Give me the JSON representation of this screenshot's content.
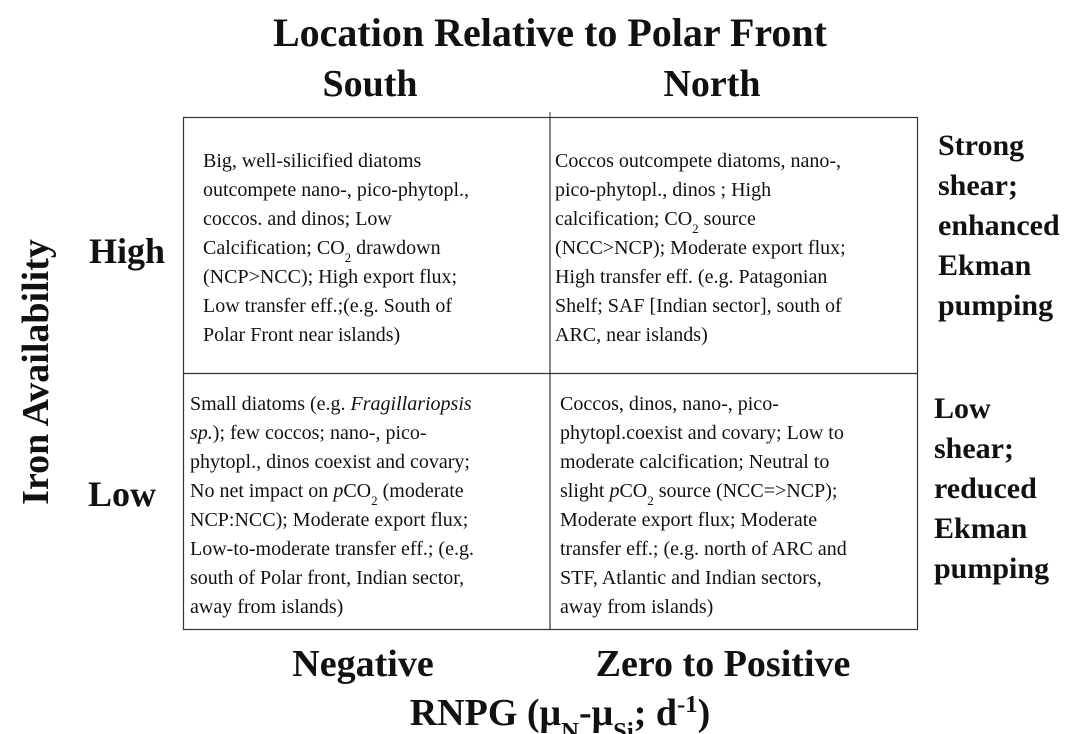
{
  "header": {
    "title": "Location Relative to Polar Front",
    "columns": [
      "South",
      "North"
    ]
  },
  "y_axis": {
    "label": "Iron Availability",
    "rows": [
      "High",
      "Low"
    ]
  },
  "x_axis": {
    "columns": [
      "Negative",
      "Zero to Positive"
    ],
    "label": [
      {
        "text": "RNPG (μ"
      },
      {
        "text": "N",
        "style": "sub"
      },
      {
        "text": "-μ"
      },
      {
        "text": "Si",
        "style": "sub"
      },
      {
        "text": "; d"
      },
      {
        "text": "-1",
        "style": "sup"
      },
      {
        "text": ")"
      }
    ]
  },
  "notes": [
    [
      "Strong",
      "shear;",
      "enhanced",
      "Ekman",
      "pumping"
    ],
    [
      "Low",
      "shear;",
      "reduced",
      "Ekman",
      "pumping"
    ]
  ],
  "cells": [
    [
      [
        {
          "text": "Big, well-silicified diatoms"
        }
      ],
      [
        {
          "text": "outcompete nano-, pico-phytopl.,"
        }
      ],
      [
        {
          "text": "coccos. and dinos; Low"
        }
      ],
      [
        {
          "text": "Calcification; CO"
        },
        {
          "text": "2",
          "style": "sub"
        },
        {
          "text": " drawdown"
        }
      ],
      [
        {
          "text": "(NCP>NCC); High export flux;"
        }
      ],
      [
        {
          "text": "Low transfer eff.;(e.g. South of"
        }
      ],
      [
        {
          "text": "Polar Front near islands)"
        }
      ]
    ],
    [
      [
        {
          "text": "Coccos outcompete diatoms, nano-,"
        }
      ],
      [
        {
          "text": "pico-phytopl.,  dinos ; High"
        }
      ],
      [
        {
          "text": "calcification; CO"
        },
        {
          "text": "2",
          "style": "sub"
        },
        {
          "text": " source"
        }
      ],
      [
        {
          "text": "(NCC>NCP); Moderate export flux;"
        }
      ],
      [
        {
          "text": "High transfer eff. (e.g. Patagonian"
        }
      ],
      [
        {
          "text": "Shelf; SAF [Indian sector], south of"
        }
      ],
      [
        {
          "text": "ARC, near islands)"
        }
      ]
    ],
    [
      [
        {
          "text": "Small diatoms (e.g. "
        },
        {
          "text": "Fragillariopsis",
          "style": "italic"
        }
      ],
      [
        {
          "text": "sp.",
          "style": "italic"
        },
        {
          "text": "); few coccos; nano-, pico-"
        }
      ],
      [
        {
          "text": "phytopl., dinos coexist and covary;"
        }
      ],
      [
        {
          "text": "No net impact on "
        },
        {
          "text": "p",
          "style": "italic"
        },
        {
          "text": "CO"
        },
        {
          "text": "2",
          "style": "sub"
        },
        {
          "text": " (moderate"
        }
      ],
      [
        {
          "text": "NCP:NCC); Moderate export flux;"
        }
      ],
      [
        {
          "text": "Low-to-moderate transfer eff.; (e.g."
        }
      ],
      [
        {
          "text": "south of Polar front, Indian sector,"
        }
      ],
      [
        {
          "text": "away from islands)"
        }
      ]
    ],
    [
      [
        {
          "text": "Coccos, dinos, nano-, pico-"
        }
      ],
      [
        {
          "text": "phytopl.coexist and covary; Low to"
        }
      ],
      [
        {
          "text": "moderate calcification; Neutral to"
        }
      ],
      [
        {
          "text": "slight "
        },
        {
          "text": "p",
          "style": "italic"
        },
        {
          "text": "CO"
        },
        {
          "text": "2",
          "style": "sub"
        },
        {
          "text": " source (NCC=>NCP);"
        }
      ],
      [
        {
          "text": "Moderate export flux; Moderate"
        }
      ],
      [
        {
          "text": "transfer eff.; (e.g. north of ARC and"
        }
      ],
      [
        {
          "text": "STF, Atlantic and Indian sectors,"
        }
      ],
      [
        {
          "text": "away from islands)"
        }
      ]
    ]
  ]
}
